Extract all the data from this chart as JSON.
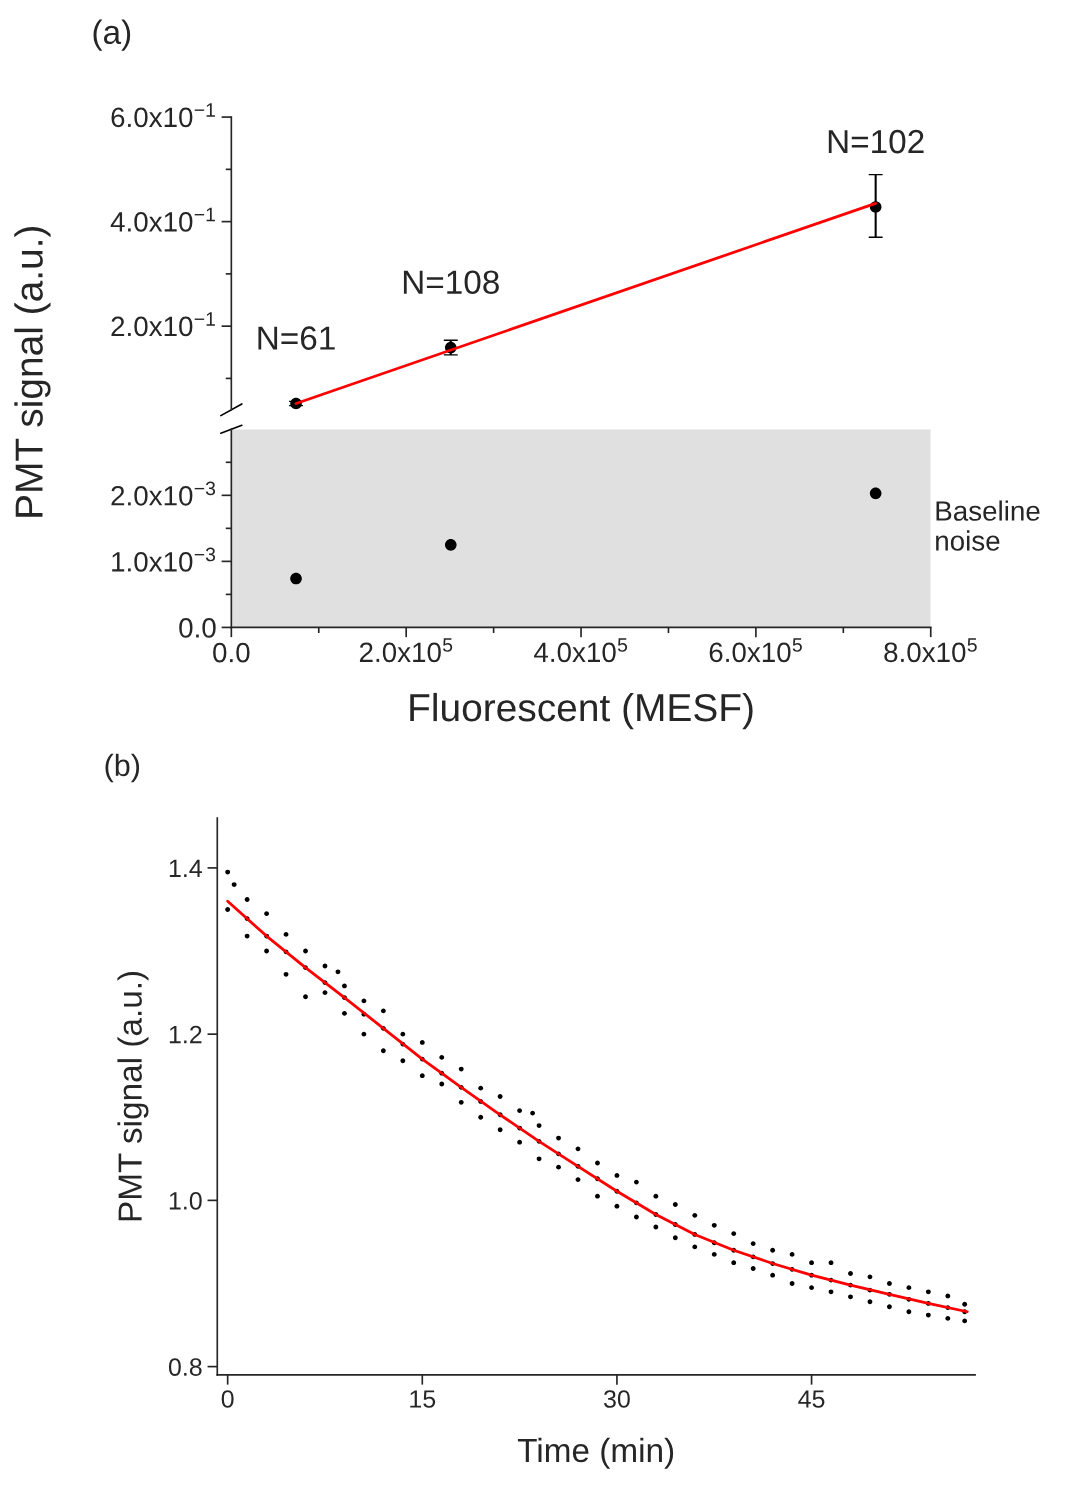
{
  "chart_data": [
    {
      "type": "scatter",
      "title": "(a)",
      "ylabel": "PMT signal (a.u.)",
      "marker": "circle",
      "tick_labels": "y",
      "xlim": [
        0,
        800000
      ],
      "ylim": [
        0.04,
        0.6
      ],
      "yticks": [
        {
          "value": 0.1,
          "label": null
        },
        {
          "value": 0.2,
          "label": "2.0x10$^{−1}$"
        },
        {
          "value": 0.3,
          "label": null
        },
        {
          "value": 0.4,
          "label": "4.0x10$^{−1}$"
        },
        {
          "value": 0.5,
          "label": null
        },
        {
          "value": 0.6,
          "label": "6.0x10$^{−1}$"
        }
      ],
      "series": [
        {
          "color": "#000000",
          "x": [
            74000,
            251000,
            737000
          ],
          "values": [
            0.052,
            0.159,
            0.428
          ],
          "errors": [
            0.004,
            0.014,
            [
              0.37,
              0.49
            ]
          ]
        },
        {
          "type": "line",
          "marker": "none",
          "color": "#ff0000",
          "x": [
            74000,
            737000
          ],
          "values": [
            0.052,
            0.435
          ]
        }
      ],
      "annotations": [
        {
          "text": "N=61",
          "x": 74000,
          "y": 0.052
        },
        {
          "text": "N=108",
          "x": 251000,
          "y": 0.159
        },
        {
          "text": "N=102",
          "x": 737000,
          "y": 0.428
        }
      ]
    },
    {
      "type": "scatter",
      "xlabel": "Fluorescent (MESF)",
      "marker": "circle",
      "xlim": [
        0,
        800000
      ],
      "ylim": [
        0,
        0.003
      ],
      "xticks": [
        {
          "value": 0,
          "label": "0.0"
        },
        {
          "value": 100000,
          "label": null
        },
        {
          "value": 200000,
          "label": "2.0x10$^{5}$"
        },
        {
          "value": 300000,
          "label": null
        },
        {
          "value": 400000,
          "label": "4.0x10$^{5}$"
        },
        {
          "value": 500000,
          "label": null
        },
        {
          "value": 600000,
          "label": "6.0x10$^{5}$"
        },
        {
          "value": 700000,
          "label": null
        },
        {
          "value": 800000,
          "label": "8.0x10$^{5}$"
        }
      ],
      "yticks": [
        {
          "value": 0,
          "label": "0.0"
        },
        {
          "value": 0.0005,
          "label": null
        },
        {
          "value": 0.001,
          "label": "1.0x10$^{−3}$"
        },
        {
          "value": 0.0015,
          "label": null
        },
        {
          "value": 0.002,
          "label": "2.0x10$^{−3}$"
        },
        {
          "value": 0.0025,
          "label": null
        }
      ],
      "series": [
        {
          "color": "#000000",
          "x": [
            74000,
            251000,
            737000
          ],
          "values": [
            0.00074,
            0.00125,
            0.00203
          ]
        }
      ],
      "bands": [
        {
          "axis": "y",
          "from": 0,
          "to": 0.003,
          "label": "Baseline\nnoise",
          "color": "#e0e0e0"
        }
      ]
    },
    {
      "type": "scatter",
      "title": "(b)",
      "xlabel": "Time (min)",
      "ylabel": "PMT signal (a.u.)",
      "marker": "circle",
      "xlim": [
        -0.8,
        57.6
      ],
      "ylim": [
        0.79,
        1.46
      ],
      "xticks": [
        0,
        15,
        30,
        45
      ],
      "yticks": [
        0.8,
        {
          "value": 1.0,
          "label": "1.0"
        },
        1.2,
        1.4
      ],
      "series": [
        {
          "color": "#000000",
          "x": [
            0,
            0,
            0.5,
            1.5,
            1.5,
            1.5,
            3,
            3,
            3,
            4.5,
            4.5,
            4.5,
            6,
            6,
            6,
            7.5,
            7.5,
            7.5,
            8.5,
            9,
            9,
            9,
            10.5,
            10.5,
            10.5,
            12,
            12,
            12,
            13.5,
            13.5,
            13.5,
            15,
            15,
            15,
            16.5,
            16.5,
            16.5,
            18,
            18,
            18,
            19.5,
            19.5,
            19.5,
            21,
            21,
            21,
            22.5,
            22.5,
            22.5,
            23.5,
            24,
            24,
            24,
            25.5,
            25.5,
            25.5,
            27,
            27,
            27,
            28.5,
            28.5,
            28.5,
            30,
            30,
            30,
            31.5,
            31.5,
            31.5,
            33,
            33,
            33,
            34.5,
            34.5,
            34.5,
            36,
            36,
            36,
            37.5,
            37.5,
            37.5,
            39,
            39,
            39,
            40.5,
            40.5,
            40.5,
            42,
            42,
            42,
            43.5,
            43.5,
            43.5,
            45,
            45,
            45,
            46.5,
            46.5,
            46.5,
            48,
            48,
            48,
            49.5,
            49.5,
            49.5,
            51,
            51,
            51,
            52.5,
            52.5,
            52.5,
            54,
            54,
            54,
            55.5,
            55.5,
            55.5,
            56.8,
            56.8,
            56.8
          ],
          "values": [
            1.395,
            1.35,
            1.38,
            1.362,
            1.339,
            1.318,
            1.345,
            1.318,
            1.3,
            1.32,
            1.299,
            1.272,
            1.3,
            1.28,
            1.245,
            1.282,
            1.262,
            1.25,
            1.275,
            1.258,
            1.244,
            1.225,
            1.24,
            1.224,
            1.2,
            1.228,
            1.207,
            1.18,
            1.2,
            1.188,
            1.168,
            1.19,
            1.17,
            1.15,
            1.172,
            1.153,
            1.14,
            1.158,
            1.136,
            1.118,
            1.135,
            1.119,
            1.1,
            1.125,
            1.103,
            1.085,
            1.108,
            1.087,
            1.07,
            1.105,
            1.09,
            1.071,
            1.05,
            1.075,
            1.056,
            1.04,
            1.062,
            1.041,
            1.025,
            1.045,
            1.026,
            1.005,
            1.03,
            1.011,
            0.993,
            1.022,
            0.997,
            0.98,
            1.005,
            0.983,
            0.968,
            0.995,
            0.971,
            0.955,
            0.982,
            0.959,
            0.944,
            0.97,
            0.949,
            0.935,
            0.96,
            0.94,
            0.925,
            0.948,
            0.932,
            0.918,
            0.94,
            0.924,
            0.91,
            0.935,
            0.917,
            0.9,
            0.925,
            0.91,
            0.895,
            0.925,
            0.904,
            0.89,
            0.912,
            0.898,
            0.884,
            0.908,
            0.892,
            0.878,
            0.9,
            0.887,
            0.872,
            0.895,
            0.881,
            0.866,
            0.89,
            0.876,
            0.862,
            0.885,
            0.871,
            0.858,
            0.875,
            0.866,
            0.855
          ]
        },
        {
          "type": "line",
          "marker": "none",
          "color": "#ff0000",
          "x": [
            0,
            3,
            6,
            9,
            12,
            15,
            18,
            21,
            24,
            27,
            30,
            33,
            36,
            39,
            42,
            45,
            48,
            51,
            54,
            57
          ],
          "values": [
            1.36,
            1.318,
            1.28,
            1.244,
            1.207,
            1.17,
            1.136,
            1.103,
            1.071,
            1.041,
            1.011,
            0.983,
            0.959,
            0.94,
            0.924,
            0.91,
            0.898,
            0.887,
            0.876,
            0.866
          ]
        }
      ]
    }
  ]
}
